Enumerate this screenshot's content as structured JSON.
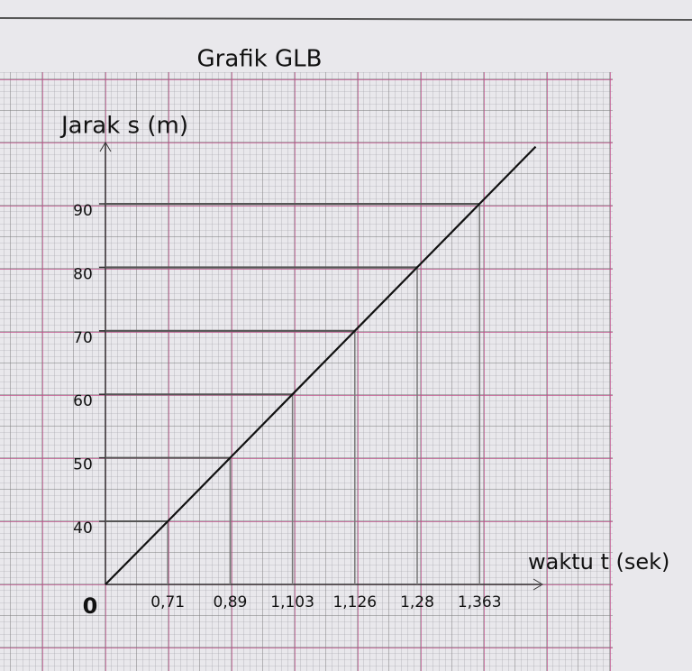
{
  "chart_data": {
    "type": "line",
    "title": "Grafik GLB",
    "y_label": "Jarak s (m)",
    "x_label": "waktu t (sek)",
    "origin_label": "0",
    "categories": [
      "0,71",
      "0,89",
      "1,103",
      "1,126",
      "1,28",
      "1,363"
    ],
    "series": [
      {
        "values": [
          40,
          50,
          60,
          70,
          80,
          90
        ],
        "color": "#111111"
      }
    ],
    "yticks": [
      40,
      50,
      60,
      70,
      80,
      90
    ],
    "grid": true
  }
}
